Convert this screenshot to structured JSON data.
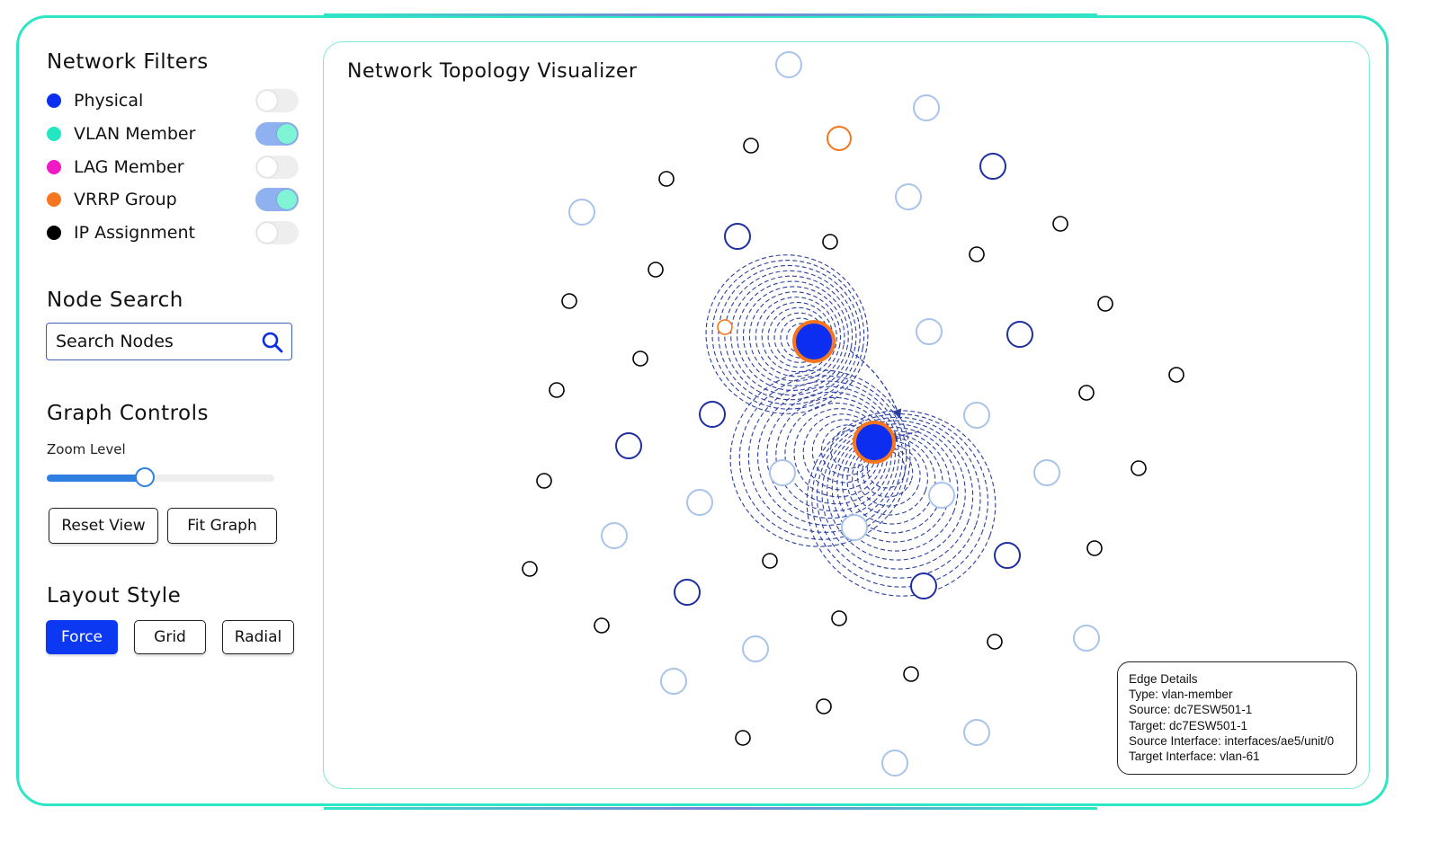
{
  "filters": {
    "title": "Network Filters",
    "items": [
      {
        "label": "Physical",
        "color": "#0b2ef0",
        "enabled": false
      },
      {
        "label": "VLAN Member",
        "color": "#23e6c3",
        "enabled": true
      },
      {
        "label": "LAG Member",
        "color": "#f019c4",
        "enabled": false
      },
      {
        "label": "VRRP Group",
        "color": "#f5761e",
        "enabled": true
      },
      {
        "label": "IP Assignment",
        "color": "#000000",
        "enabled": false
      }
    ]
  },
  "search": {
    "title": "Node Search",
    "placeholder": "Search Nodes"
  },
  "controls": {
    "title": "Graph Controls",
    "zoom_label": "Zoom Level",
    "zoom_value": 0.43,
    "reset_label": "Reset View",
    "fit_label": "Fit Graph"
  },
  "layout": {
    "title": "Layout Style",
    "options": [
      {
        "label": "Force",
        "selected": true
      },
      {
        "label": "Grid",
        "selected": false
      },
      {
        "label": "Radial",
        "selected": false
      }
    ]
  },
  "graph": {
    "title": "Network Topology Visualizer",
    "colors": {
      "physical": "#0b2ef0",
      "vlan_dark": "#1f2fa0",
      "vlan_light": "#a9c4ea",
      "vrrp": "#f5761e",
      "ip": "#000000"
    }
  },
  "edge_details": {
    "heading": "Edge Details",
    "type": "Type: vlan-member",
    "source": "Source: dc7ESW501-1",
    "target": "Target: dc7ESW501-1",
    "source_interface": "Source Interface: interfaces/ae5/unit/0",
    "target_interface": "Target Interface: vlan-61"
  }
}
